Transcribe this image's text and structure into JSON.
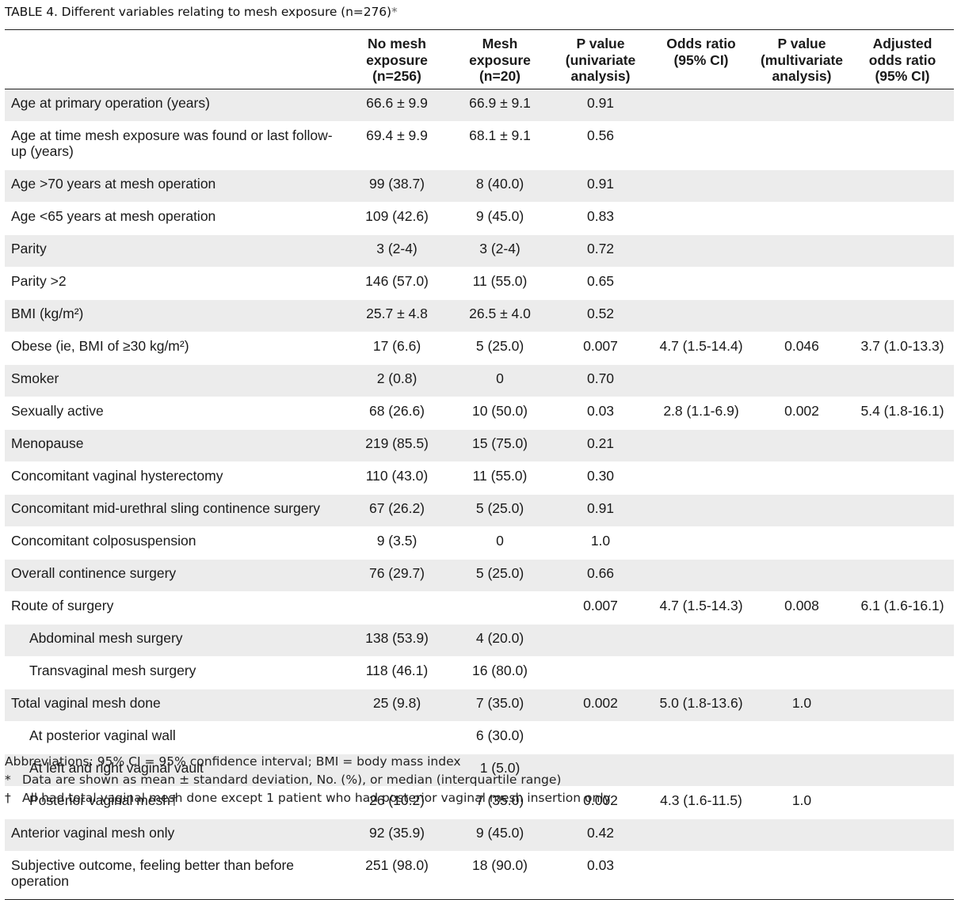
{
  "caption": {
    "text": "TABLE 4.  Different variables relating to mesh exposure (n=276)",
    "symbol": "*"
  },
  "headers": [
    "",
    "No mesh exposure (n=256)",
    "Mesh exposure (n=20)",
    "P value (univariate analysis)",
    "Odds ratio (95% CI)",
    "P value (multivariate analysis)",
    "Adjusted odds ratio (95% CI)"
  ],
  "header_lines": [
    [],
    [
      "No mesh",
      "exposure",
      "(n=256)"
    ],
    [
      "Mesh",
      "exposure",
      "(n=20)"
    ],
    [
      "P value",
      "(univariate",
      "analysis)"
    ],
    [
      "Odds ratio",
      "(95% CI)"
    ],
    [
      "P value",
      "(multivariate",
      "analysis)"
    ],
    [
      "Adjusted",
      "odds ratio",
      "(95% CI)"
    ]
  ],
  "rows": [
    [
      "Age at primary operation (years)",
      "66.6 ± 9.9",
      "66.9 ± 9.1",
      "0.91",
      "",
      "",
      ""
    ],
    [
      "Age at time mesh exposure was found or last follow-up (years)",
      "69.4 ± 9.9",
      "68.1 ± 9.1",
      "0.56",
      "",
      "",
      ""
    ],
    [
      "Age >70 years at mesh operation",
      "99 (38.7)",
      "8 (40.0)",
      "0.91",
      "",
      "",
      ""
    ],
    [
      "Age <65 years at mesh operation",
      "109 (42.6)",
      "9 (45.0)",
      "0.83",
      "",
      "",
      ""
    ],
    [
      "Parity",
      "3 (2-4)",
      "3 (2-4)",
      "0.72",
      "",
      "",
      ""
    ],
    [
      "Parity >2",
      "146 (57.0)",
      "11 (55.0)",
      "0.65",
      "",
      "",
      ""
    ],
    [
      "BMI (kg/m²)",
      "25.7 ± 4.8",
      "26.5 ± 4.0",
      "0.52",
      "",
      "",
      ""
    ],
    [
      "Obese (ie, BMI of ≥30 kg/m²)",
      "17 (6.6)",
      "5 (25.0)",
      "0.007",
      "4.7 (1.5-14.4)",
      "0.046",
      "3.7 (1.0-13.3)"
    ],
    [
      "Smoker",
      "2 (0.8)",
      "0",
      "0.70",
      "",
      "",
      ""
    ],
    [
      "Sexually active",
      "68 (26.6)",
      "10 (50.0)",
      "0.03",
      "2.8 (1.1-6.9)",
      "0.002",
      "5.4 (1.8-16.1)"
    ],
    [
      "Menopause",
      "219 (85.5)",
      "15 (75.0)",
      "0.21",
      "",
      "",
      ""
    ],
    [
      "Concomitant vaginal hysterectomy",
      "110 (43.0)",
      "11 (55.0)",
      "0.30",
      "",
      "",
      ""
    ],
    [
      "Concomitant mid-urethral sling continence surgery",
      "67 (26.2)",
      "5 (25.0)",
      "0.91",
      "",
      "",
      ""
    ],
    [
      "Concomitant colposuspension",
      "9 (3.5)",
      "0",
      "1.0",
      "",
      "",
      ""
    ],
    [
      "Overall continence surgery",
      "76 (29.7)",
      "5 (25.0)",
      "0.66",
      "",
      "",
      ""
    ],
    [
      "Route of surgery",
      "",
      "",
      "0.007",
      "4.7 (1.5-14.3)",
      "0.008",
      "6.1 (1.6-16.1)"
    ],
    [
      "Abdominal mesh surgery",
      "138 (53.9)",
      "4 (20.0)",
      "",
      "",
      "",
      ""
    ],
    [
      "Transvaginal mesh surgery",
      "118 (46.1)",
      "16 (80.0)",
      "",
      "",
      "",
      ""
    ],
    [
      "Total vaginal mesh done",
      "25 (9.8)",
      "7 (35.0)",
      "0.002",
      "5.0 (1.8-13.6)",
      "1.0",
      ""
    ],
    [
      "At posterior vaginal wall",
      "",
      "6 (30.0)",
      "",
      "",
      "",
      ""
    ],
    [
      "At left and right vaginal vault",
      "",
      "1 (5.0)",
      "",
      "",
      "",
      ""
    ],
    [
      "Posterior vaginal mesh†",
      "26 (10.2)",
      "7 (35.0)",
      "0.002",
      "4.3 (1.6-11.5)",
      "1.0",
      ""
    ],
    [
      "Anterior vaginal mesh only",
      "92 (35.9)",
      "9 (45.0)",
      "0.42",
      "",
      "",
      ""
    ],
    [
      "Subjective outcome, feeling better than before operation",
      "251 (98.0)",
      "18 (90.0)",
      "0.03",
      "",
      "",
      ""
    ]
  ],
  "footnotes": {
    "abbreviations": "Abbreviations: 95% CI = 95% confidence interval; BMI = body mass index",
    "star_symbol": "*",
    "star_text": "Data are shown as mean ± standard deviation, No. (%), or median (interquartile range)",
    "dagger_symbol": "†",
    "dagger_text": "All had total vaginal mesh done except 1 patient who had posterior vaginal mesh insertion only"
  }
}
